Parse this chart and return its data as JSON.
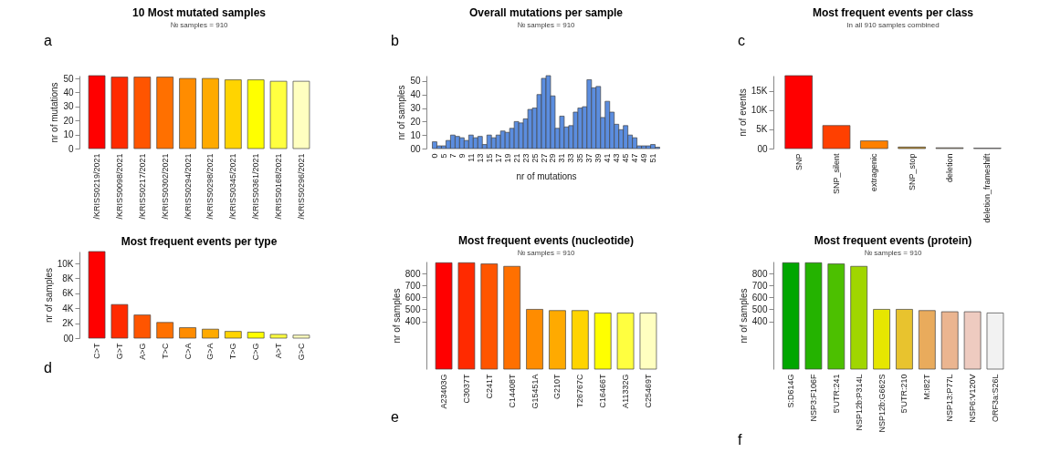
{
  "chart_data": [
    {
      "type": "bar",
      "title": "10 Most mutated samples",
      "subtitle": "№ samples = 910",
      "ylabel": "nr of mutations",
      "annotations": [
        "a"
      ],
      "categories": [
        "/KRISS0219/2021",
        "/KRISS0098/2021",
        "/KRISS0217/2021",
        "/KRISS0302/2021",
        "/KRISS0294/2021",
        "/KRISS0298/2021",
        "/KRISS0345/2021",
        "/KRISS0361/2021",
        "/KRISS0168/2021",
        "/KRISS0296/2021"
      ],
      "values": [
        52,
        51,
        51,
        51,
        50,
        50,
        49,
        49,
        48,
        48
      ],
      "colors": [
        "#ff0000",
        "#ff2a00",
        "#ff5500",
        "#ff7000",
        "#ff8c00",
        "#ffaa00",
        "#ffd400",
        "#ffff00",
        "#ffff40",
        "#ffffc0"
      ],
      "ylim": [
        0,
        52
      ],
      "yticks": [
        0,
        10,
        20,
        30,
        40,
        50
      ]
    },
    {
      "type": "bar",
      "title": "Overall mutations per sample",
      "subtitle": "№ samples = 910",
      "xlabel": "nr of mutations",
      "ylabel": "nr of samples",
      "annotations": [
        "b"
      ],
      "categories": [
        "0",
        null,
        "5",
        null,
        "7",
        null,
        "9",
        null,
        "11",
        null,
        "13",
        null,
        "15",
        null,
        "17",
        null,
        "19",
        null,
        "21",
        null,
        "23",
        null,
        "25",
        null,
        "27",
        null,
        "29",
        null,
        "31",
        null,
        "33",
        null,
        "35",
        null,
        "37",
        null,
        "39",
        null,
        "41",
        null,
        "43",
        null,
        "45",
        null,
        "47",
        null,
        "49",
        null,
        "51",
        null
      ],
      "values": [
        5,
        2,
        2,
        6,
        10,
        9,
        8,
        6,
        10,
        8,
        9,
        3,
        10,
        8,
        10,
        13,
        12,
        15,
        20,
        19,
        22,
        29,
        30,
        40,
        52,
        54,
        39,
        15,
        24,
        16,
        17,
        27,
        30,
        31,
        51,
        45,
        46,
        23,
        35,
        27,
        18,
        14,
        17,
        10,
        8,
        2,
        2,
        2,
        3,
        1
      ],
      "color": "#5b8ddf",
      "ylim": [
        0,
        54
      ],
      "yticks": [
        {
          "value": 0,
          "label": "00"
        },
        10,
        20,
        30,
        40,
        50
      ]
    },
    {
      "type": "bar",
      "title": "Most frequent events per class",
      "subtitle": "In all 910 samples combined",
      "ylabel": "nr of events",
      "annotations": [
        "c"
      ],
      "categories": [
        "SNP",
        "SNP_silent",
        "extragenic",
        "SNP_stop",
        "deletion",
        "deletion_frameshift"
      ],
      "values": [
        19000,
        6000,
        2000,
        400,
        200,
        100
      ],
      "colors": [
        "#ff0000",
        "#ff4000",
        "#ff8000",
        "#c08a20",
        "#a08868",
        "#b0aa98"
      ],
      "ylim": [
        0,
        19000
      ],
      "yticks": [
        {
          "value": 0,
          "label": "00"
        },
        {
          "value": 5000,
          "label": "5K"
        },
        {
          "value": 10000,
          "label": "10K"
        },
        {
          "value": 15000,
          "label": "15K"
        }
      ]
    },
    {
      "type": "bar",
      "title": "Most frequent events per type",
      "ylabel": "nr of samples",
      "annotations": [
        "d"
      ],
      "categories": [
        "C>T",
        "G>T",
        "A>G",
        "T>C",
        "C>A",
        "G>A",
        "T>G",
        "C>G",
        "A>T",
        "G>C"
      ],
      "values": [
        11600,
        4500,
        3100,
        2100,
        1400,
        1200,
        900,
        800,
        500,
        400
      ],
      "colors": [
        "#ff0000",
        "#ff2a00",
        "#ff5500",
        "#ff7000",
        "#ff8c00",
        "#ffaa00",
        "#ffd400",
        "#ffff00",
        "#ffff40",
        "#ffffc0"
      ],
      "ylim": [
        0,
        11600
      ],
      "yticks": [
        {
          "value": 0,
          "label": "00"
        },
        {
          "value": 2000,
          "label": "2K"
        },
        {
          "value": 4000,
          "label": "4K"
        },
        {
          "value": 6000,
          "label": "6K"
        },
        {
          "value": 8000,
          "label": "8K"
        },
        {
          "value": 10000,
          "label": "10K"
        }
      ]
    },
    {
      "type": "bar",
      "title": "Most frequent events (nucleotide)",
      "subtitle": "№ samples = 910",
      "ylabel": "nr of samples",
      "annotations": [
        "e"
      ],
      "categories": [
        "A23403G",
        "C3037T",
        "C241T",
        "C14408T",
        "G15451A",
        "G210T",
        "T26767C",
        "C16466T",
        "A11332G",
        "C25469T"
      ],
      "values": [
        890,
        890,
        880,
        860,
        500,
        490,
        490,
        470,
        470,
        470
      ],
      "colors": [
        "#ff0000",
        "#ff2a00",
        "#ff5500",
        "#ff7000",
        "#ff8c00",
        "#ffaa00",
        "#ffd400",
        "#ffff00",
        "#ffff40",
        "#ffffc0"
      ],
      "ylim": [
        0,
        900
      ],
      "yticks": [
        400,
        500,
        600,
        700,
        800
      ]
    },
    {
      "type": "bar",
      "title": "Most frequent events (protein)",
      "subtitle": "№ samples = 910",
      "ylabel": "nr of samples",
      "annotations": [
        "f"
      ],
      "categories": [
        "S:D614G",
        "NSP3:F106F",
        "5'UTR:241",
        "NSP12b:P314L",
        "NSP12b:G662S",
        "5'UTR:210",
        "M:I82T",
        "NSP13:P77L",
        "NSP6:V120V",
        "ORF3a:S26L"
      ],
      "values": [
        890,
        890,
        880,
        860,
        500,
        500,
        490,
        480,
        480,
        470
      ],
      "colors": [
        "#00a600",
        "#24b300",
        "#4cc000",
        "#a0d600",
        "#e6e600",
        "#e8c32e",
        "#e9ab5c",
        "#ebb590",
        "#eecbc0",
        "#f2f2f2"
      ],
      "ylim": [
        0,
        900
      ],
      "yticks": [
        400,
        500,
        600,
        700,
        800
      ]
    }
  ]
}
